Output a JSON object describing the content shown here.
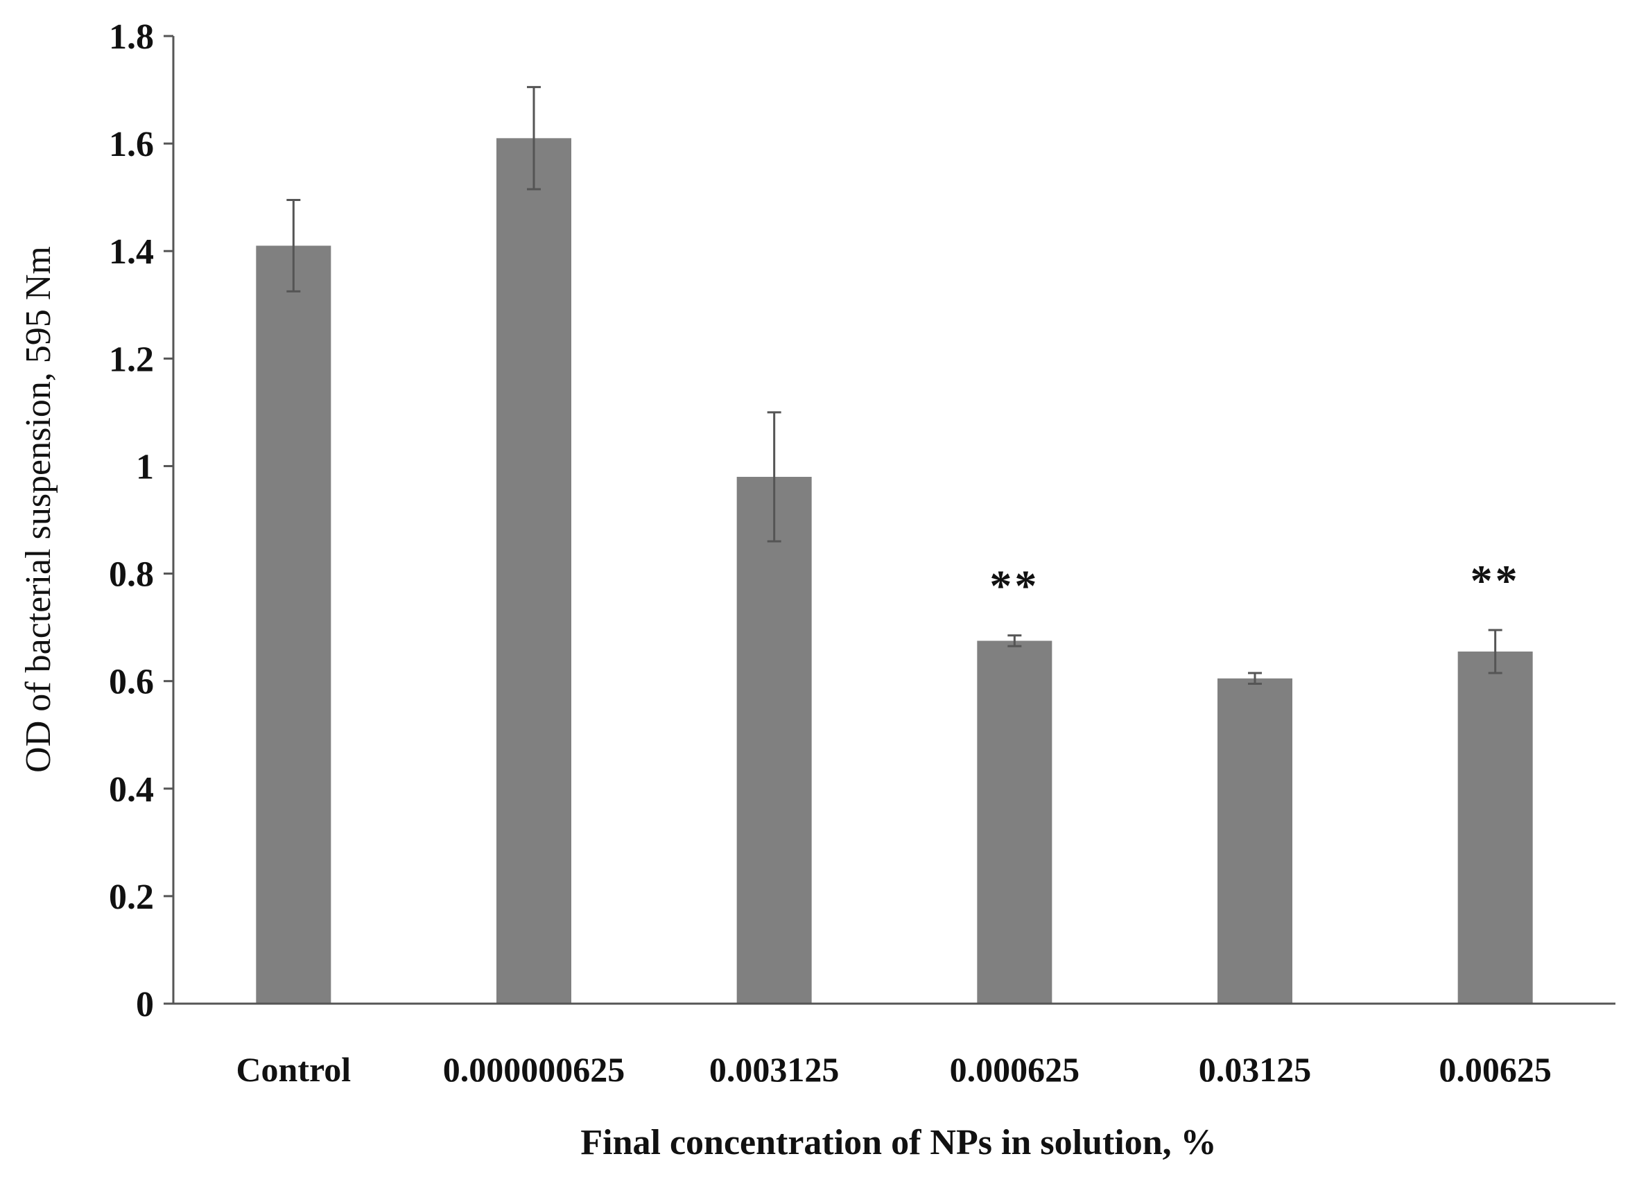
{
  "chart_data": {
    "type": "bar",
    "categories": [
      "Control",
      "0.000000625",
      "0.003125",
      "0.000625",
      "0.03125",
      "0.00625"
    ],
    "values": [
      1.41,
      1.61,
      0.98,
      0.675,
      0.605,
      0.655
    ],
    "errors": [
      0.085,
      0.095,
      0.12,
      0.01,
      0.01,
      0.04
    ],
    "annotations": [
      "",
      "",
      "",
      "**",
      "",
      "**"
    ],
    "xlabel": "Final concentration of NPs in solution, %",
    "ylabel": "OD of bacterial suspension, 595 Nm",
    "ylim": [
      0,
      1.8
    ],
    "yticks": [
      0,
      0.2,
      0.4,
      0.6,
      0.8,
      1,
      1.2,
      1.4,
      1.6,
      1.8
    ],
    "ytick_labels": [
      "0",
      "0.2",
      "0.4",
      "0.6",
      "0.8",
      "1",
      "1.2",
      "1.4",
      "1.6",
      "1.8"
    ],
    "bar_color": "#808080",
    "axis_color": "#555555",
    "error_bar_color": "#555555",
    "grid": false,
    "legend": "none"
  }
}
